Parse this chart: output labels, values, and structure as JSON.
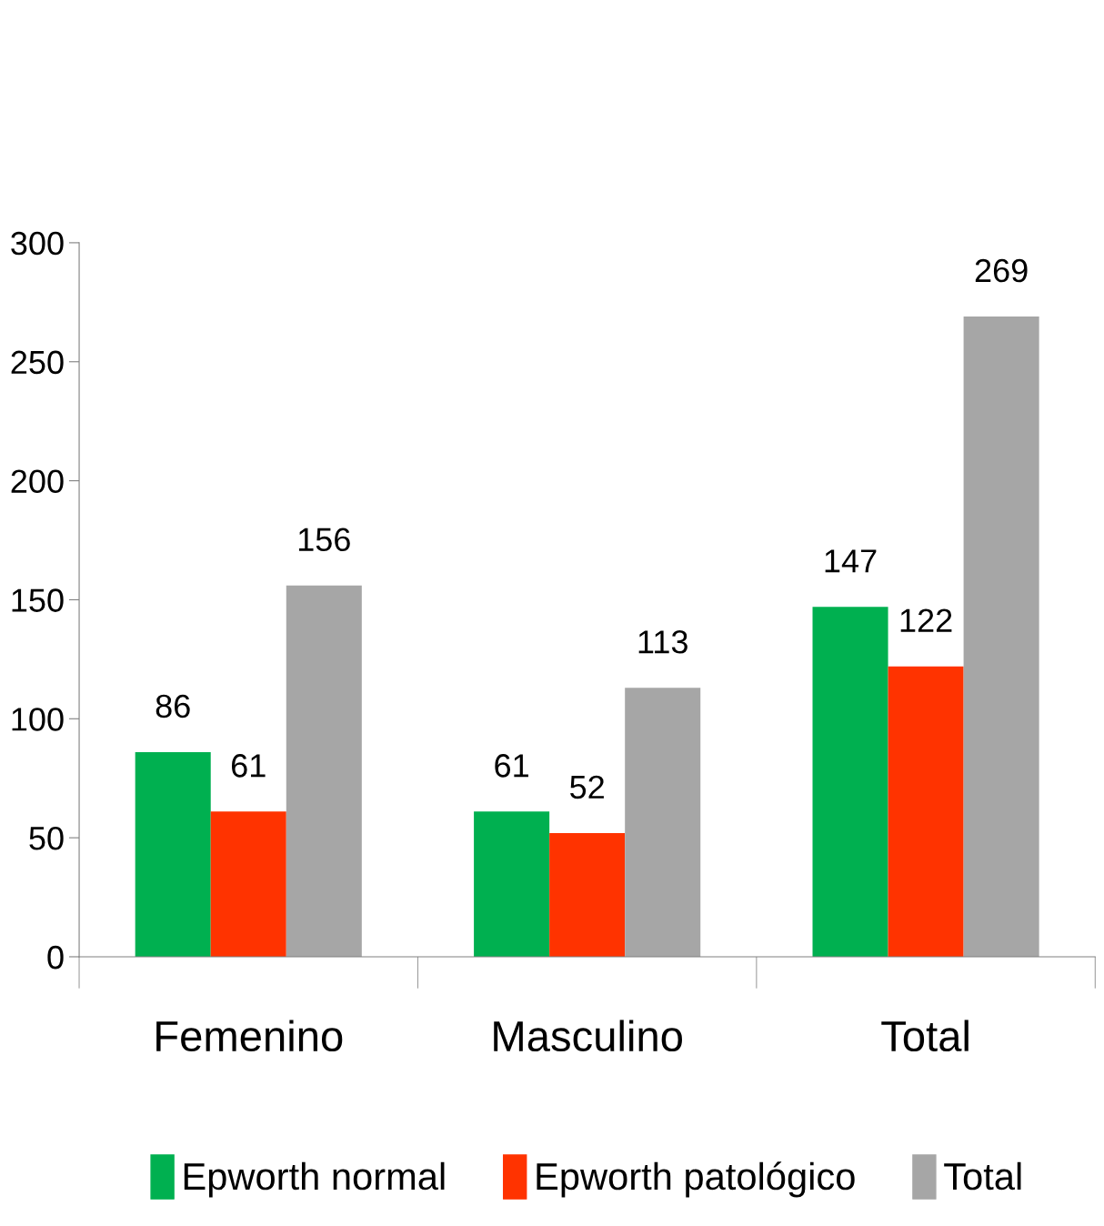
{
  "chart_data": {
    "type": "bar",
    "categories": [
      "Femenino",
      "Masculino",
      "Total"
    ],
    "series": [
      {
        "name": "Epworth normal",
        "color": "#00b050",
        "values": [
          86,
          61,
          147
        ]
      },
      {
        "name": "Epworth patológico",
        "color": "#ff3300",
        "values": [
          61,
          52,
          122
        ]
      },
      {
        "name": "Total",
        "color": "#a6a6a6",
        "values": [
          156,
          113,
          269
        ]
      }
    ],
    "ylim": [
      0,
      300
    ],
    "yticks": [
      0,
      50,
      100,
      150,
      200,
      250,
      300
    ],
    "data_labels": true,
    "grid": false,
    "legend": "bottom"
  }
}
